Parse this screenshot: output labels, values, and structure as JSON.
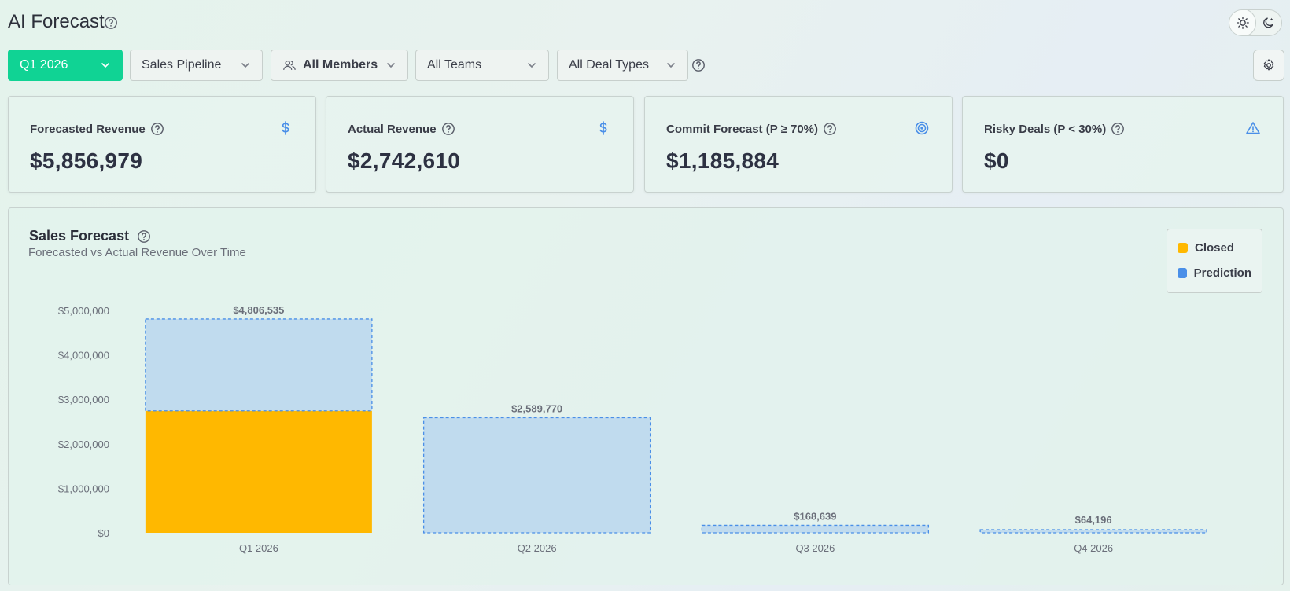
{
  "header": {
    "title": "AI Forecast",
    "theme_options": [
      "light",
      "dark"
    ],
    "theme_selected": "light"
  },
  "filters": {
    "period": "Q1 2026",
    "pipeline": "Sales Pipeline",
    "members": "All Members",
    "teams": "All Teams",
    "deal_types": "All Deal Types"
  },
  "kpis": [
    {
      "label": "Forecasted Revenue",
      "value": "$5,856,979",
      "icon": "dollar-icon"
    },
    {
      "label": "Actual Revenue",
      "value": "$2,742,610",
      "icon": "dollar-icon"
    },
    {
      "label": "Commit Forecast (P ≥ 70%)",
      "value": "$1,185,884",
      "icon": "target-icon"
    },
    {
      "label": "Risky Deals (P < 30%)",
      "value": "$0",
      "icon": "warning-icon"
    }
  ],
  "colors": {
    "accent": "#10d394",
    "closed": "#ffb800",
    "prediction": "#4a8fe8",
    "prediction_fill": "#c0dbee",
    "icon_blue": "#4a8fe8"
  },
  "chart": {
    "title": "Sales Forecast",
    "subtitle": "Forecasted vs Actual Revenue Over Time",
    "legend": [
      "Closed",
      "Prediction"
    ]
  },
  "chart_data": {
    "type": "bar",
    "categories": [
      "Q1 2026",
      "Q2 2026",
      "Q3 2026",
      "Q4 2026"
    ],
    "series": [
      {
        "name": "Closed",
        "values": [
          2742610,
          0,
          0,
          0
        ]
      },
      {
        "name": "Prediction",
        "values": [
          2063925,
          2589770,
          168639,
          64196
        ]
      }
    ],
    "totals": [
      4806535,
      2589770,
      168639,
      64196
    ],
    "total_labels": [
      "$4,806,535",
      "$2,589,770",
      "$168,639",
      "$64,196"
    ],
    "y_ticks": [
      0,
      1000000,
      2000000,
      3000000,
      4000000,
      5000000
    ],
    "y_tick_labels": [
      "$0",
      "$1,000,000",
      "$2,000,000",
      "$3,000,000",
      "$4,000,000",
      "$5,000,000"
    ],
    "ylim": [
      0,
      5000000
    ],
    "stacked": true,
    "grid": false,
    "legend_position": "top-right"
  }
}
